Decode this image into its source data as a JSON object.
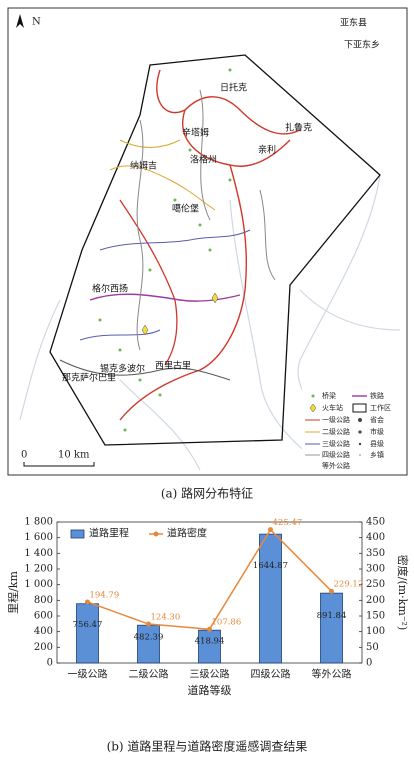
{
  "map": {
    "north": "N",
    "labels": [
      "亚东县",
      "下亚东乡",
      "日托克",
      "辛塔姆",
      "扎鲁克",
      "洛格州",
      "亲利",
      "纳姆吉",
      "噶伦堡",
      "格尔西扬",
      "西里古里",
      "锡克多波尔",
      "那克萨尔巴里"
    ],
    "legend": [
      "桥梁",
      "火车站",
      "一级公路",
      "二级公路",
      "三级公路",
      "四级公路",
      "等外公路",
      "铁路",
      "工作区",
      "省会",
      "市级",
      "县级",
      "乡镇"
    ],
    "scale": [
      "0",
      "10 km"
    ],
    "caption": "(a) 路网分布特征"
  },
  "chart_data": {
    "type": "bar",
    "categories": [
      "一级公路",
      "二级公路",
      "三级公路",
      "四级公路",
      "等外公路"
    ],
    "series": [
      {
        "name": "道路里程",
        "type": "bar",
        "color": "#5b8fd6",
        "values": [
          756.47,
          482.39,
          418.94,
          1644.87,
          891.84
        ]
      },
      {
        "name": "道路密度",
        "type": "line",
        "axis": "y2",
        "color": "#e8883a",
        "values": [
          194.79,
          124.3,
          107.86,
          425.47,
          229.12
        ],
        "value_labels": [
          "194.79",
          "124.30",
          "107.86",
          "425.47",
          "229.12"
        ]
      }
    ],
    "ylim": [
      0,
      1800
    ],
    "yticks": [
      0,
      200,
      400,
      600,
      800,
      {
        "value": 1000,
        "label": "1 000"
      },
      {
        "value": 1200,
        "label": "1 200"
      },
      {
        "value": 1400,
        "label": "1 400"
      },
      {
        "value": 1600,
        "label": "1 600"
      },
      {
        "value": 1800,
        "label": "1 800"
      }
    ],
    "y2lim": [
      0,
      450
    ],
    "y2ticks": [
      0,
      50,
      100,
      150,
      200,
      250,
      300,
      350,
      400,
      450
    ],
    "ylabel": "里程/km",
    "y2label": "密度/(m·km⁻²)",
    "xlabel": "道路等级",
    "legend": "top-left",
    "caption": "(b) 道路里程与道路密度遥感调查结果"
  }
}
